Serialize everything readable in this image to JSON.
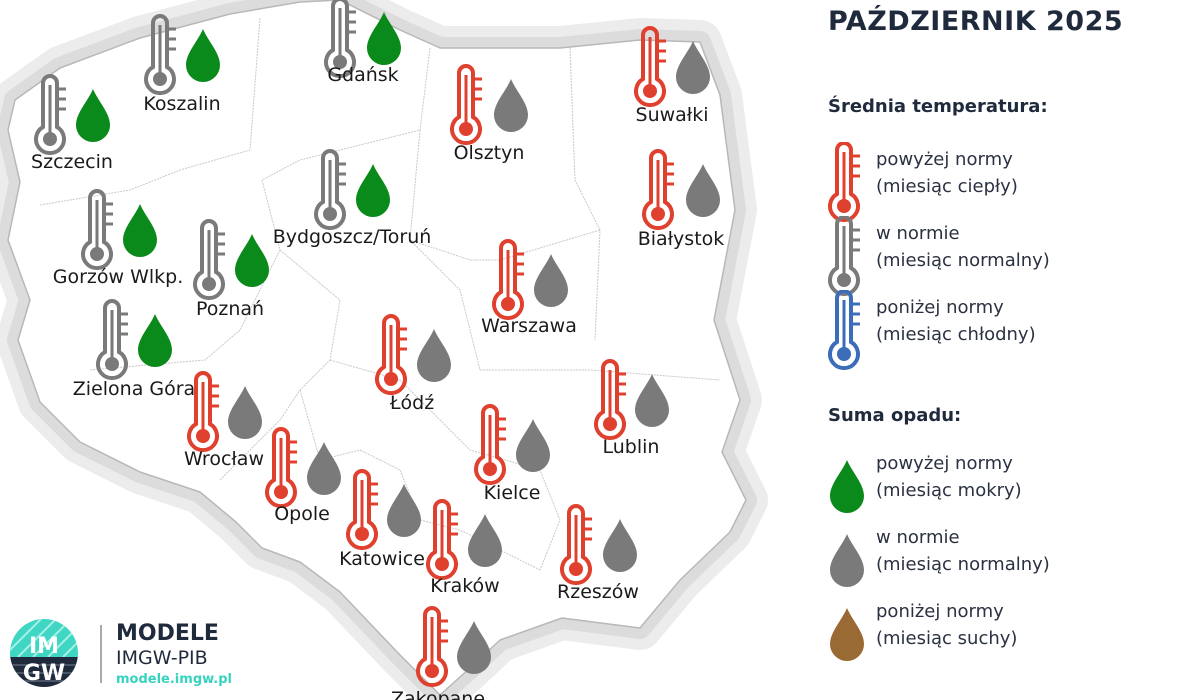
{
  "title": "PAŹDZIERNIK 2025",
  "colors": {
    "above": "#e0402e",
    "normal": "#7a7a7a",
    "below": "#3c6db8",
    "wet": "#0a8a1a",
    "dry": "#9a6a34",
    "halo": "#dcdcdc",
    "land": "#ffffff"
  },
  "legend": {
    "temp_heading": "Średnia temperatura:",
    "temp_items": [
      {
        "category": "above",
        "line1": "powyżej normy",
        "line2": "(miesiąc ciepły)",
        "icon": "thermometer-red-icon"
      },
      {
        "category": "normal",
        "line1": "w normie",
        "line2": "(miesiąc normalny)",
        "icon": "thermometer-gray-icon"
      },
      {
        "category": "below",
        "line1": "poniżej normy",
        "line2": "(miesiąc chłodny)",
        "icon": "thermometer-blue-icon"
      }
    ],
    "precip_heading": "Suma opadu:",
    "precip_items": [
      {
        "category": "wet",
        "line1": "powyżej normy",
        "line2": "(miesiąc mokry)",
        "icon": "drop-green-icon"
      },
      {
        "category": "normal",
        "line1": "w normie",
        "line2": "(miesiąc normalny)",
        "icon": "drop-gray-icon"
      },
      {
        "category": "dry",
        "line1": "poniżej normy",
        "line2": "(miesiąc suchy)",
        "icon": "drop-brown-icon"
      }
    ]
  },
  "cities": [
    {
      "name": "Gdańsk",
      "temp": "normal",
      "precip": "wet"
    },
    {
      "name": "Koszalin",
      "temp": "normal",
      "precip": "wet"
    },
    {
      "name": "Szczecin",
      "temp": "normal",
      "precip": "wet"
    },
    {
      "name": "Olsztyn",
      "temp": "above",
      "precip": "normal"
    },
    {
      "name": "Suwałki",
      "temp": "above",
      "precip": "normal"
    },
    {
      "name": "Bydgoszcz/Toruń",
      "temp": "normal",
      "precip": "wet"
    },
    {
      "name": "Białystok",
      "temp": "above",
      "precip": "normal"
    },
    {
      "name": "Gorzów Wlkp.",
      "temp": "normal",
      "precip": "wet"
    },
    {
      "name": "Poznań",
      "temp": "normal",
      "precip": "wet"
    },
    {
      "name": "Warszawa",
      "temp": "above",
      "precip": "normal"
    },
    {
      "name": "Zielona Góra",
      "temp": "normal",
      "precip": "wet"
    },
    {
      "name": "Łódź",
      "temp": "above",
      "precip": "normal"
    },
    {
      "name": "Lublin",
      "temp": "above",
      "precip": "normal"
    },
    {
      "name": "Wrocław",
      "temp": "above",
      "precip": "normal"
    },
    {
      "name": "Kielce",
      "temp": "above",
      "precip": "normal"
    },
    {
      "name": "Opole",
      "temp": "above",
      "precip": "normal"
    },
    {
      "name": "Katowice",
      "temp": "above",
      "precip": "normal"
    },
    {
      "name": "Kraków",
      "temp": "above",
      "precip": "normal"
    },
    {
      "name": "Rzeszów",
      "temp": "above",
      "precip": "normal"
    },
    {
      "name": "Zakopane",
      "temp": "above",
      "precip": "normal"
    }
  ],
  "logo": {
    "emblem": "IMGW",
    "name": "MODELE",
    "org": "IMGW-PIB",
    "url": "modele.imgw.pl"
  }
}
